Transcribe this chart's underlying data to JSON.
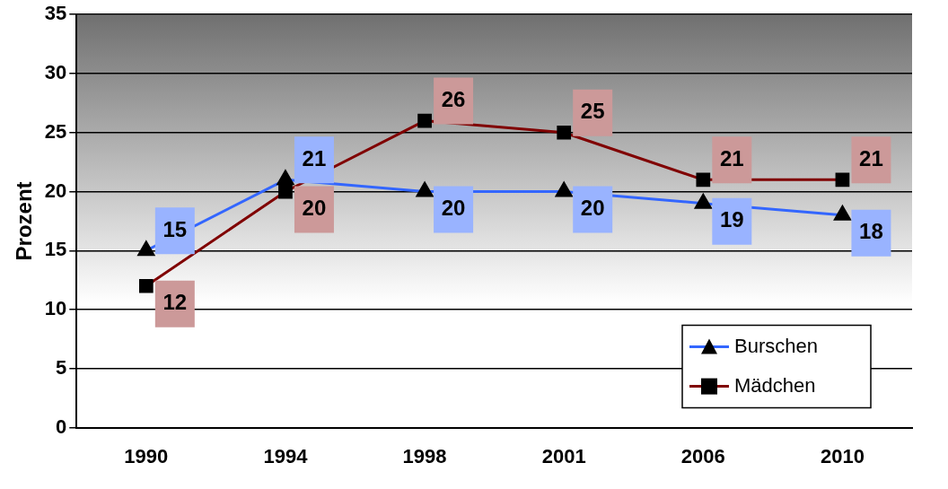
{
  "chart_data": {
    "type": "line",
    "ylabel": "Prozent",
    "categories": [
      "1990",
      "1994",
      "1998",
      "2001",
      "2006",
      "2010"
    ],
    "series": [
      {
        "name": "Burschen",
        "color": "#3366ff",
        "marker": "triangle",
        "values": [
          15,
          21,
          20,
          20,
          19,
          18
        ]
      },
      {
        "name": "Mädchen",
        "color": "#800000",
        "marker": "square",
        "values": [
          12,
          20,
          26,
          25,
          21,
          21
        ]
      }
    ],
    "ylim": [
      0,
      35
    ],
    "yticks": [
      0,
      5,
      10,
      15,
      20,
      25,
      30,
      35
    ],
    "grid": "y",
    "legend": "bottom right",
    "data_labels": true
  }
}
